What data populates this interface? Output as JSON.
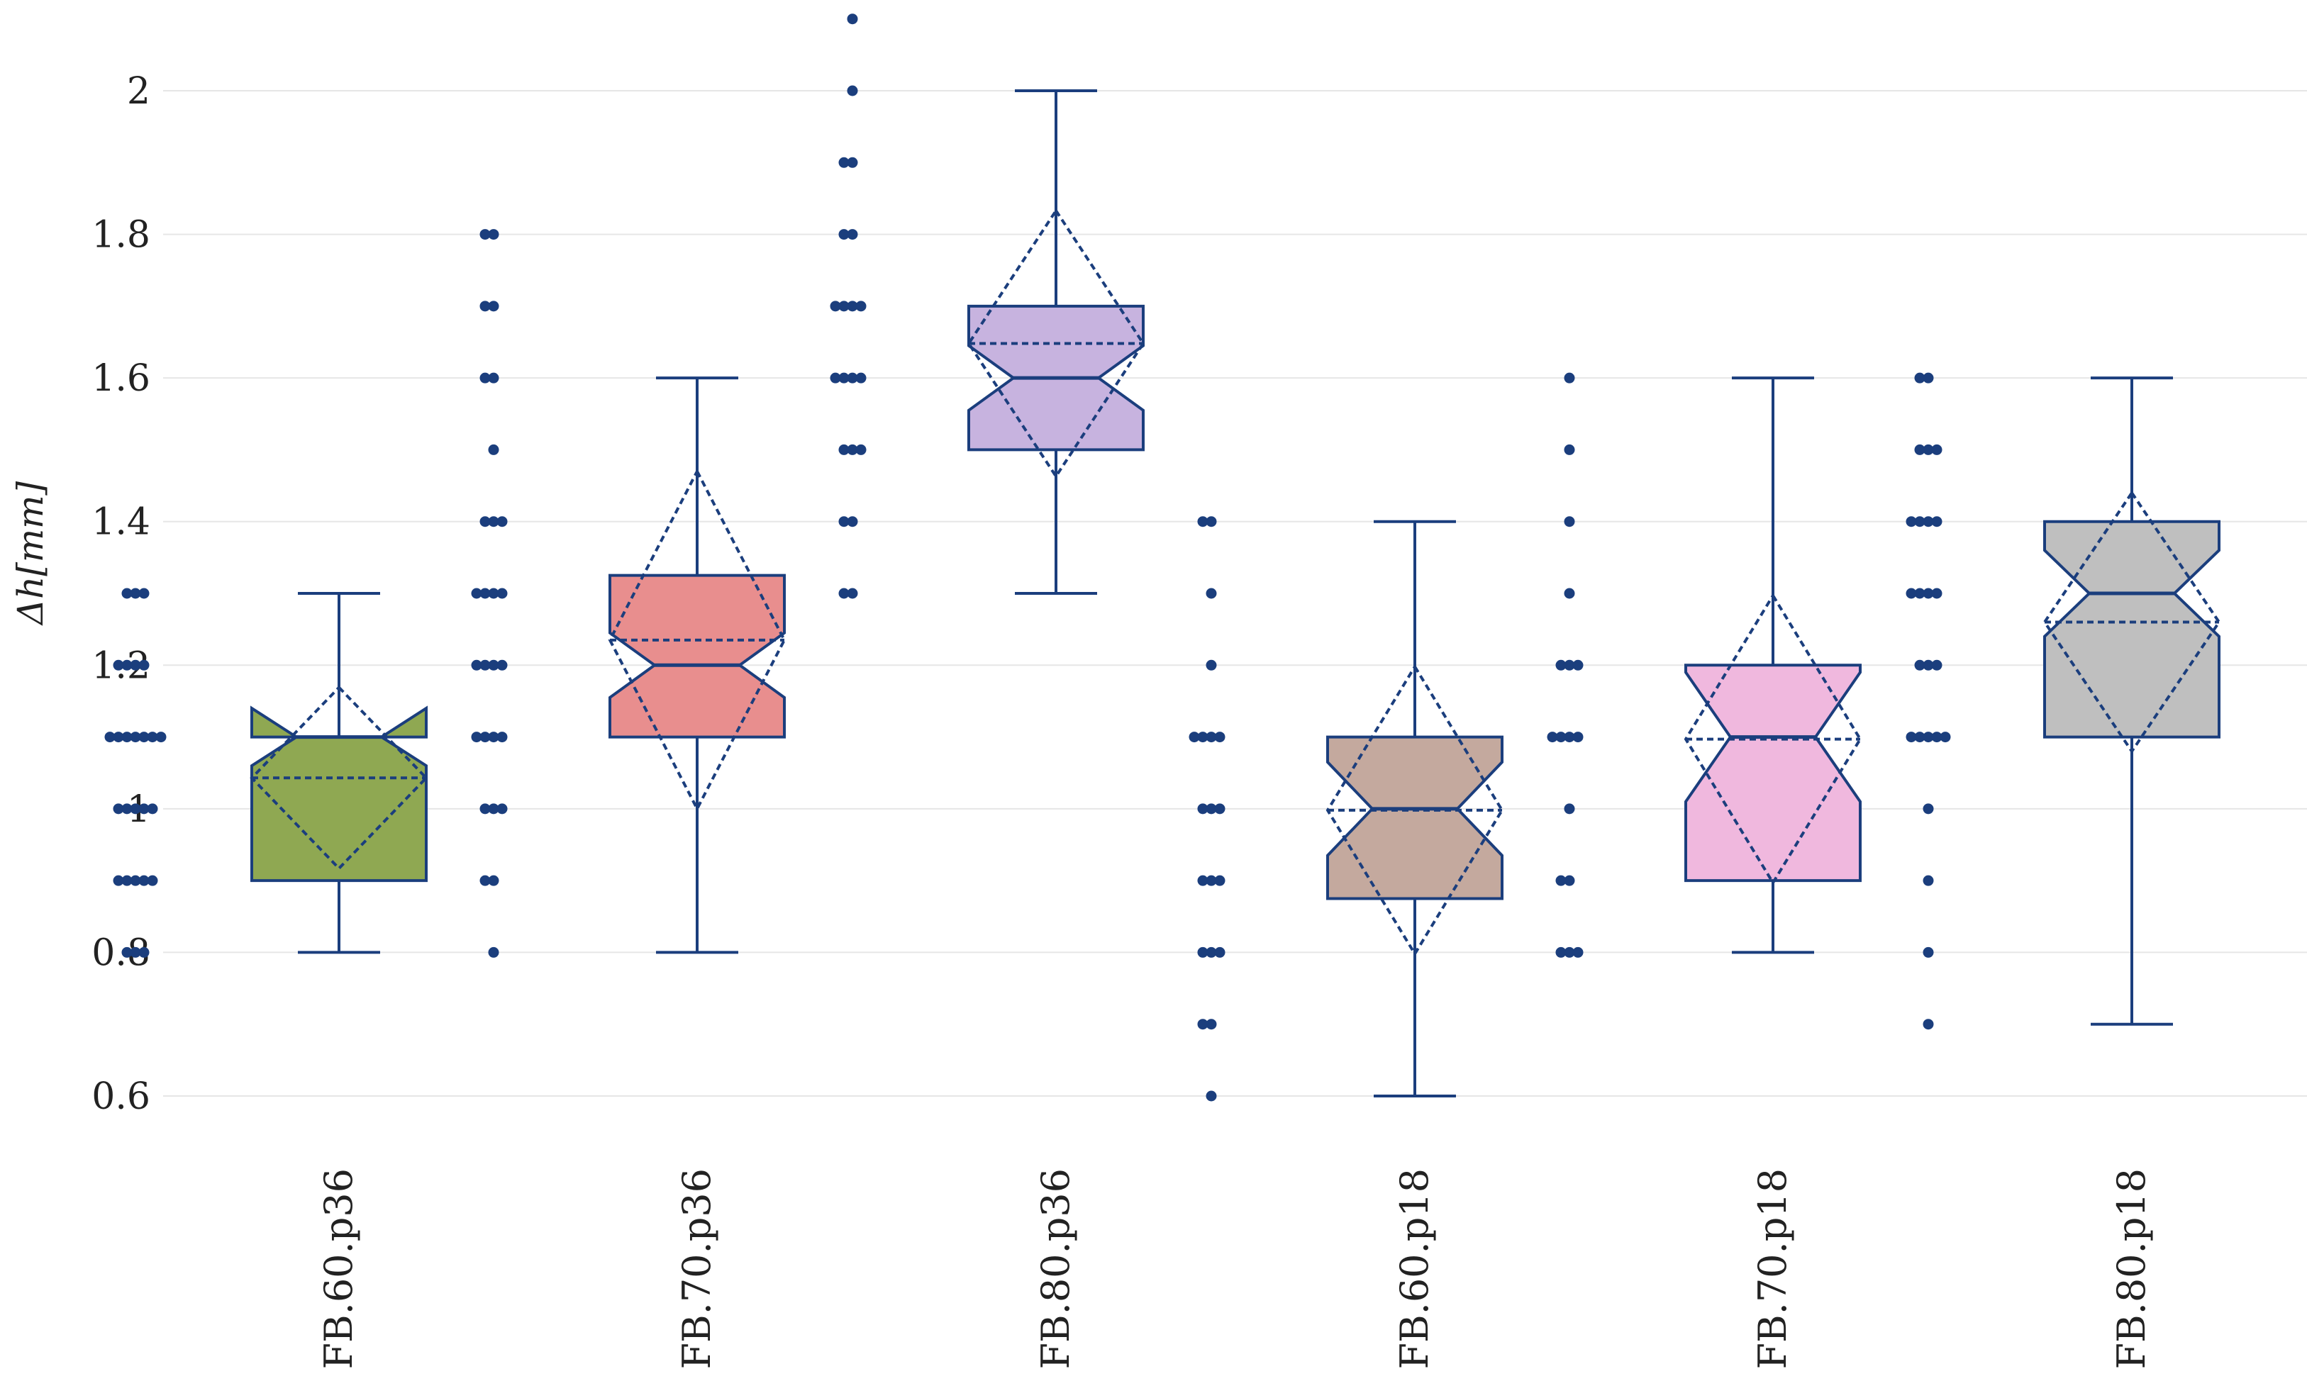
{
  "chart_data": {
    "type": "box",
    "title": "",
    "xlabel": "",
    "ylabel": "Δh[mm]",
    "ylim": [
      0.52,
      2.13
    ],
    "yticks": [
      0.6,
      0.8,
      1,
      1.2,
      1.4,
      1.6,
      1.8,
      2
    ],
    "ytick_labels": [
      "0.6",
      "0.8",
      "1",
      "1.2",
      "1.4",
      "1.6",
      "1.8",
      "2"
    ],
    "grid": true,
    "notched": true,
    "show_mean_and_sd": true,
    "points": "all",
    "categories": [
      "FB.60.p36",
      "FB.70.p36",
      "FB.80.p36",
      "FB.60.p18",
      "FB.70.p18",
      "FB.80.p18"
    ],
    "series": [
      {
        "name": "FB.60.p36",
        "color": "#8fa852",
        "min": 0.8,
        "q1": 0.9,
        "median": 1.1,
        "q3": 1.1,
        "max": 1.3,
        "notch_low": 1.06,
        "notch_high": 1.14,
        "mean": 1.043,
        "sd": 0.126,
        "points": [
          0.8,
          0.8,
          0.8,
          0.9,
          0.9,
          0.9,
          0.9,
          0.9,
          1.0,
          1.0,
          1.0,
          1.0,
          1.0,
          1.1,
          1.1,
          1.1,
          1.1,
          1.1,
          1.1,
          1.1,
          1.2,
          1.2,
          1.2,
          1.2,
          1.3,
          1.3,
          1.3
        ]
      },
      {
        "name": "FB.70.p36",
        "color": "#e88e8e",
        "min": 0.8,
        "q1": 1.1,
        "median": 1.2,
        "q3": 1.325,
        "max": 1.6,
        "notch_low": 1.155,
        "notch_high": 1.245,
        "mean": 1.235,
        "sd": 0.235,
        "points": [
          0.8,
          0.9,
          0.9,
          1.0,
          1.0,
          1.0,
          1.1,
          1.1,
          1.1,
          1.1,
          1.2,
          1.2,
          1.2,
          1.2,
          1.3,
          1.3,
          1.3,
          1.3,
          1.4,
          1.4,
          1.4,
          1.5,
          1.6,
          1.6,
          1.7,
          1.7,
          1.8,
          1.8
        ]
      },
      {
        "name": "FB.80.p36",
        "color": "#c7b3df",
        "min": 1.3,
        "q1": 1.5,
        "median": 1.6,
        "q3": 1.7,
        "max": 2.0,
        "notch_low": 1.555,
        "notch_high": 1.645,
        "mean": 1.648,
        "sd": 0.185,
        "points": [
          1.3,
          1.3,
          1.4,
          1.4,
          1.5,
          1.5,
          1.5,
          1.6,
          1.6,
          1.6,
          1.6,
          1.7,
          1.7,
          1.7,
          1.7,
          1.8,
          1.8,
          1.9,
          1.9,
          2.0,
          2.1
        ]
      },
      {
        "name": "FB.60.p18",
        "color": "#c4a99e",
        "min": 0.6,
        "q1": 0.875,
        "median": 1.0,
        "q3": 1.1,
        "max": 1.4,
        "notch_low": 0.935,
        "notch_high": 1.065,
        "mean": 0.998,
        "sd": 0.2,
        "points": [
          0.6,
          0.7,
          0.7,
          0.8,
          0.8,
          0.8,
          0.9,
          0.9,
          0.9,
          1.0,
          1.0,
          1.0,
          1.1,
          1.1,
          1.1,
          1.1,
          1.2,
          1.3,
          1.4,
          1.4
        ]
      },
      {
        "name": "FB.70.p18",
        "color": "#f0b8de",
        "min": 0.8,
        "q1": 0.9,
        "median": 1.1,
        "q3": 1.2,
        "max": 1.6,
        "notch_low": 1.01,
        "notch_high": 1.19,
        "mean": 1.097,
        "sd": 0.2,
        "points": [
          0.8,
          0.8,
          0.8,
          0.9,
          0.9,
          1.0,
          1.1,
          1.1,
          1.1,
          1.1,
          1.2,
          1.2,
          1.2,
          1.3,
          1.4,
          1.5,
          1.6
        ]
      },
      {
        "name": "FB.80.p18",
        "color": "#bfbfbf",
        "min": 0.7,
        "q1": 1.1,
        "median": 1.3,
        "q3": 1.4,
        "max": 1.6,
        "notch_low": 1.24,
        "notch_high": 1.36,
        "mean": 1.26,
        "sd": 0.18,
        "points": [
          0.7,
          0.8,
          0.9,
          1.0,
          1.1,
          1.1,
          1.1,
          1.1,
          1.1,
          1.2,
          1.2,
          1.2,
          1.3,
          1.3,
          1.3,
          1.3,
          1.4,
          1.4,
          1.4,
          1.4,
          1.5,
          1.5,
          1.5,
          1.6,
          1.6
        ]
      }
    ],
    "line_color": "#1b3e7d",
    "point_color": "#1b3e7d",
    "grid_color": "#e6e6e6"
  }
}
